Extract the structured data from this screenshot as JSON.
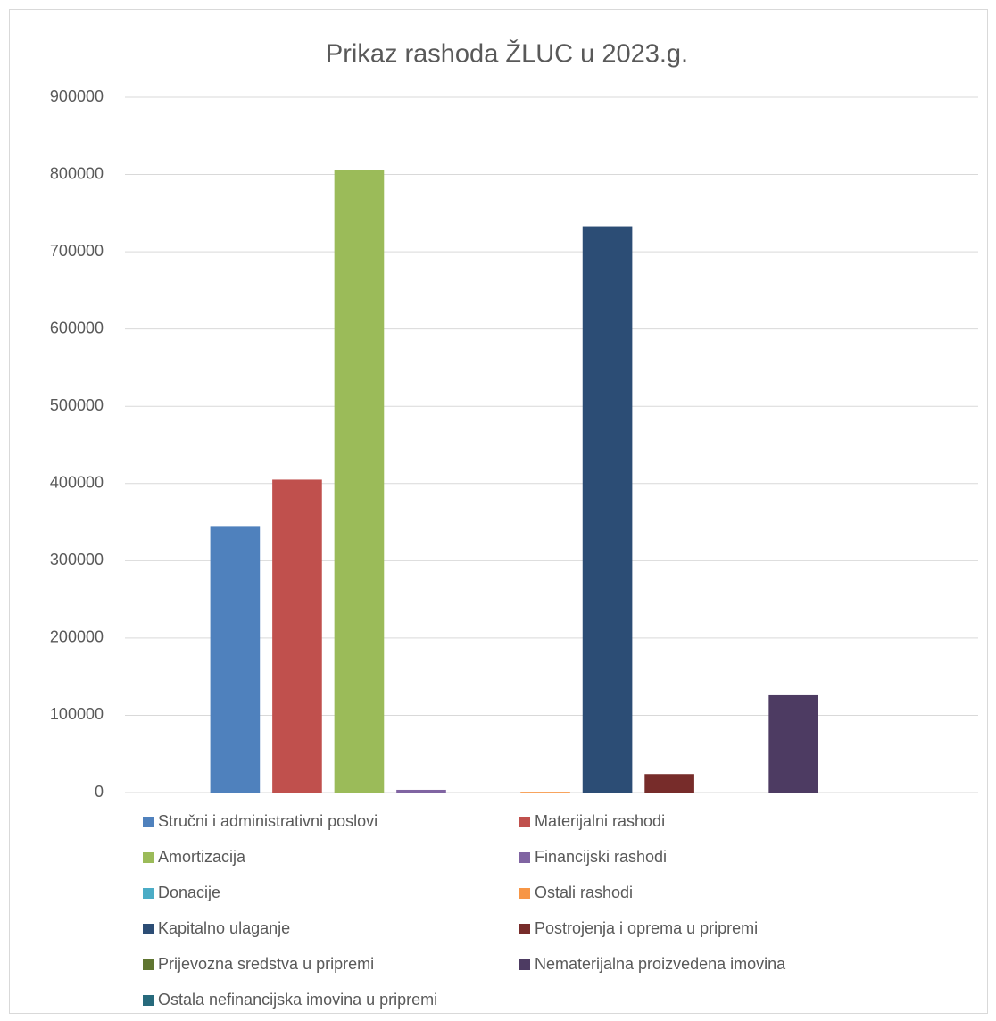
{
  "chart_data": {
    "type": "bar",
    "title": "Prikaz rashoda ŽLUC u 2023.g.",
    "categories": [
      null
    ],
    "series": [
      {
        "name": "Stručni i administrativni poslovi",
        "color": "#4f81bd",
        "values": [
          345000
        ]
      },
      {
        "name": "Materijalni rashodi",
        "color": "#c0504d",
        "values": [
          405000
        ]
      },
      {
        "name": "Amortizacija",
        "color": "#9bbb59",
        "values": [
          806000
        ]
      },
      {
        "name": "Financijski rashodi",
        "color": "#8064a2",
        "values": [
          3500
        ]
      },
      {
        "name": "Donacije",
        "color": "#4bacc6",
        "values": [
          0
        ]
      },
      {
        "name": "Ostali rashodi",
        "color": "#f79646",
        "values": [
          1000
        ]
      },
      {
        "name": "Kapitalno ulaganje",
        "color": "#2c4d75",
        "values": [
          733000
        ]
      },
      {
        "name": "Postrojenja i oprema u pripremi",
        "color": "#772c2a",
        "values": [
          24000
        ]
      },
      {
        "name": "Prijevozna sredstva u pripremi",
        "color": "#5f7530",
        "values": [
          0
        ]
      },
      {
        "name": "Nematerijalna proizvedena imovina",
        "color": "#4d3b62",
        "values": [
          126000
        ]
      },
      {
        "name": "Ostala nefinancijska imovina u pripremi",
        "color": "#276a7c",
        "values": [
          0
        ]
      }
    ],
    "ylim": [
      0,
      900000
    ],
    "yticks": [
      0,
      100000,
      200000,
      300000,
      400000,
      500000,
      600000,
      700000,
      800000,
      900000
    ],
    "grid": true,
    "legend": "bottom"
  }
}
